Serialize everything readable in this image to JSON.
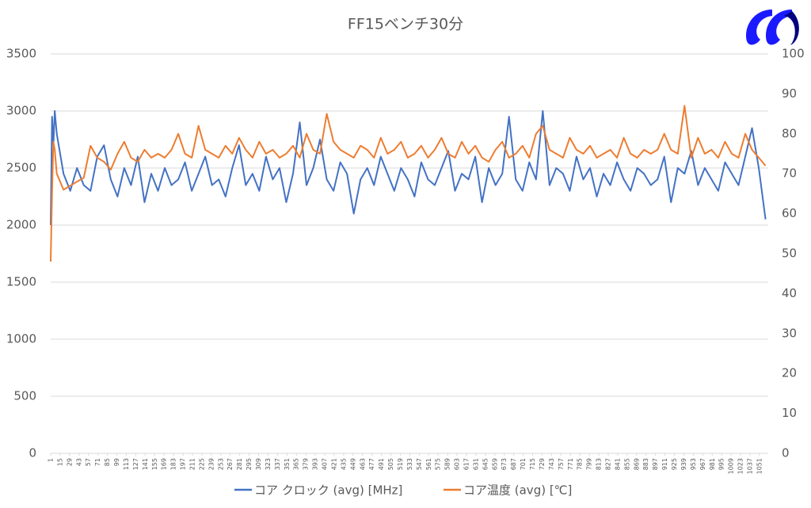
{
  "chart_data": {
    "type": "line",
    "title": "FF15ベンチ30分",
    "x": [
      1,
      3,
      5,
      7,
      10,
      20,
      30,
      40,
      50,
      60,
      70,
      80,
      90,
      100,
      110,
      120,
      130,
      140,
      150,
      160,
      170,
      180,
      190,
      200,
      210,
      220,
      230,
      240,
      250,
      260,
      270,
      280,
      290,
      300,
      310,
      320,
      330,
      340,
      350,
      360,
      370,
      380,
      390,
      400,
      410,
      420,
      430,
      440,
      450,
      460,
      470,
      480,
      490,
      500,
      510,
      520,
      530,
      540,
      550,
      560,
      570,
      580,
      590,
      600,
      610,
      620,
      630,
      640,
      650,
      660,
      670,
      680,
      690,
      700,
      710,
      720,
      730,
      740,
      750,
      760,
      770,
      780,
      790,
      800,
      810,
      820,
      830,
      840,
      850,
      860,
      870,
      880,
      890,
      900,
      910,
      920,
      930,
      940,
      950,
      960,
      970,
      980,
      990,
      1000,
      1010,
      1020,
      1030,
      1040,
      1050,
      1060
    ],
    "series": [
      {
        "name": "コア クロック (avg) [MHz]",
        "color": "#4472c4",
        "values": [
          2000,
          2950,
          2700,
          3000,
          2800,
          2450,
          2300,
          2500,
          2350,
          2300,
          2600,
          2700,
          2400,
          2250,
          2500,
          2350,
          2600,
          2200,
          2450,
          2300,
          2500,
          2350,
          2400,
          2550,
          2300,
          2450,
          2600,
          2350,
          2400,
          2250,
          2500,
          2700,
          2350,
          2450,
          2300,
          2600,
          2400,
          2500,
          2200,
          2450,
          2900,
          2350,
          2500,
          2750,
          2400,
          2300,
          2550,
          2450,
          2100,
          2400,
          2500,
          2350,
          2600,
          2450,
          2300,
          2500,
          2400,
          2250,
          2550,
          2400,
          2350,
          2500,
          2650,
          2300,
          2450,
          2400,
          2600,
          2200,
          2500,
          2350,
          2450,
          2950,
          2400,
          2300,
          2550,
          2400,
          3000,
          2350,
          2500,
          2450,
          2300,
          2600,
          2400,
          2500,
          2250,
          2450,
          2350,
          2550,
          2400,
          2300,
          2500,
          2450,
          2350,
          2400,
          2600,
          2200,
          2500,
          2450,
          2650,
          2350,
          2500,
          2400,
          2300,
          2550,
          2450,
          2350,
          2600,
          2850,
          2500,
          2050
        ]
      },
      {
        "name": "コア温度 (avg) [℃]",
        "color": "#ed7d31",
        "axis": "y2",
        "values": [
          48,
          65,
          78,
          76,
          70,
          66,
          67,
          68,
          69,
          77,
          74,
          73,
          71,
          75,
          78,
          74,
          73,
          76,
          74,
          75,
          74,
          76,
          80,
          75,
          74,
          82,
          76,
          75,
          74,
          77,
          75,
          79,
          76,
          74,
          78,
          75,
          76,
          74,
          75,
          77,
          74,
          80,
          76,
          75,
          85,
          78,
          76,
          75,
          74,
          77,
          76,
          74,
          79,
          75,
          76,
          78,
          74,
          75,
          77,
          74,
          76,
          79,
          75,
          74,
          78,
          75,
          77,
          74,
          73,
          76,
          78,
          74,
          75,
          77,
          74,
          80,
          82,
          76,
          75,
          74,
          79,
          76,
          75,
          77,
          74,
          75,
          76,
          74,
          79,
          75,
          74,
          76,
          75,
          76,
          80,
          76,
          75,
          87,
          74,
          79,
          75,
          76,
          74,
          78,
          75,
          74,
          80,
          76,
          74,
          72
        ]
      }
    ],
    "xlim": [
      1,
      1064
    ],
    "xticks": [
      1,
      15,
      29,
      43,
      57,
      71,
      85,
      99,
      113,
      127,
      141,
      155,
      169,
      183,
      197,
      211,
      225,
      239,
      253,
      267,
      281,
      295,
      309,
      323,
      337,
      351,
      365,
      379,
      393,
      407,
      421,
      435,
      449,
      463,
      477,
      491,
      505,
      519,
      533,
      547,
      561,
      575,
      589,
      603,
      617,
      631,
      645,
      659,
      673,
      687,
      701,
      715,
      729,
      743,
      757,
      771,
      785,
      799,
      813,
      827,
      841,
      855,
      869,
      883,
      897,
      911,
      925,
      939,
      953,
      967,
      981,
      995,
      1009,
      1023,
      1037,
      1051
    ],
    "ylim": [
      0,
      3500
    ],
    "yticks": [
      0,
      500,
      1000,
      1500,
      2000,
      2500,
      3000,
      3500
    ],
    "y2lim": [
      0,
      100
    ],
    "y2ticks": [
      0,
      10,
      20,
      30,
      40,
      50,
      60,
      70,
      80,
      90,
      100
    ],
    "grid": true
  }
}
